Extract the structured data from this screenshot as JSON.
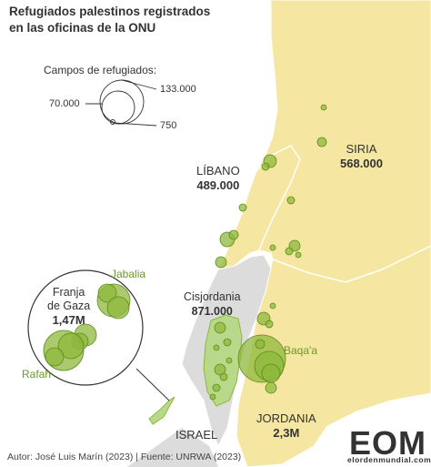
{
  "title": {
    "line1": "Refugiados palestinos registrados",
    "line2": "en las oficinas de la ONU"
  },
  "legend": {
    "title": "Campos de refugiados:",
    "values": [
      "133.000",
      "70.000",
      "750"
    ]
  },
  "regions": {
    "siria": {
      "name": "SIRIA",
      "value": "568.000"
    },
    "libano": {
      "name": "LÍBANO",
      "value": "489.000"
    },
    "cisjordania": {
      "name": "Cisjordania",
      "value": "871.000"
    },
    "jordania": {
      "name": "JORDANIA",
      "value": "2,3M"
    },
    "israel": {
      "name": "ISRAEL"
    },
    "gaza": {
      "name_line1": "Franja",
      "name_line2": "de Gaza",
      "value": "1,47M"
    }
  },
  "camp_labels": {
    "jabalia": "Jabalia",
    "rafah": "Rafah",
    "baqaa": "Baqa'a"
  },
  "credit": "Autor: José Luis Marín (2023) | Fuente: UNRWA (2023)",
  "logo": {
    "mark": "EOM",
    "site": "elordenmundial.com"
  },
  "colors": {
    "refugee_countries": "#f5e6a1",
    "other_land": "#dcdcdc",
    "sea": "#ffffff",
    "camp_fill": "#8db83c",
    "camp_stroke": "#5f8a1e",
    "camp_label": "#6b9a2a",
    "palestine_highlight": "#b9d98a"
  }
}
